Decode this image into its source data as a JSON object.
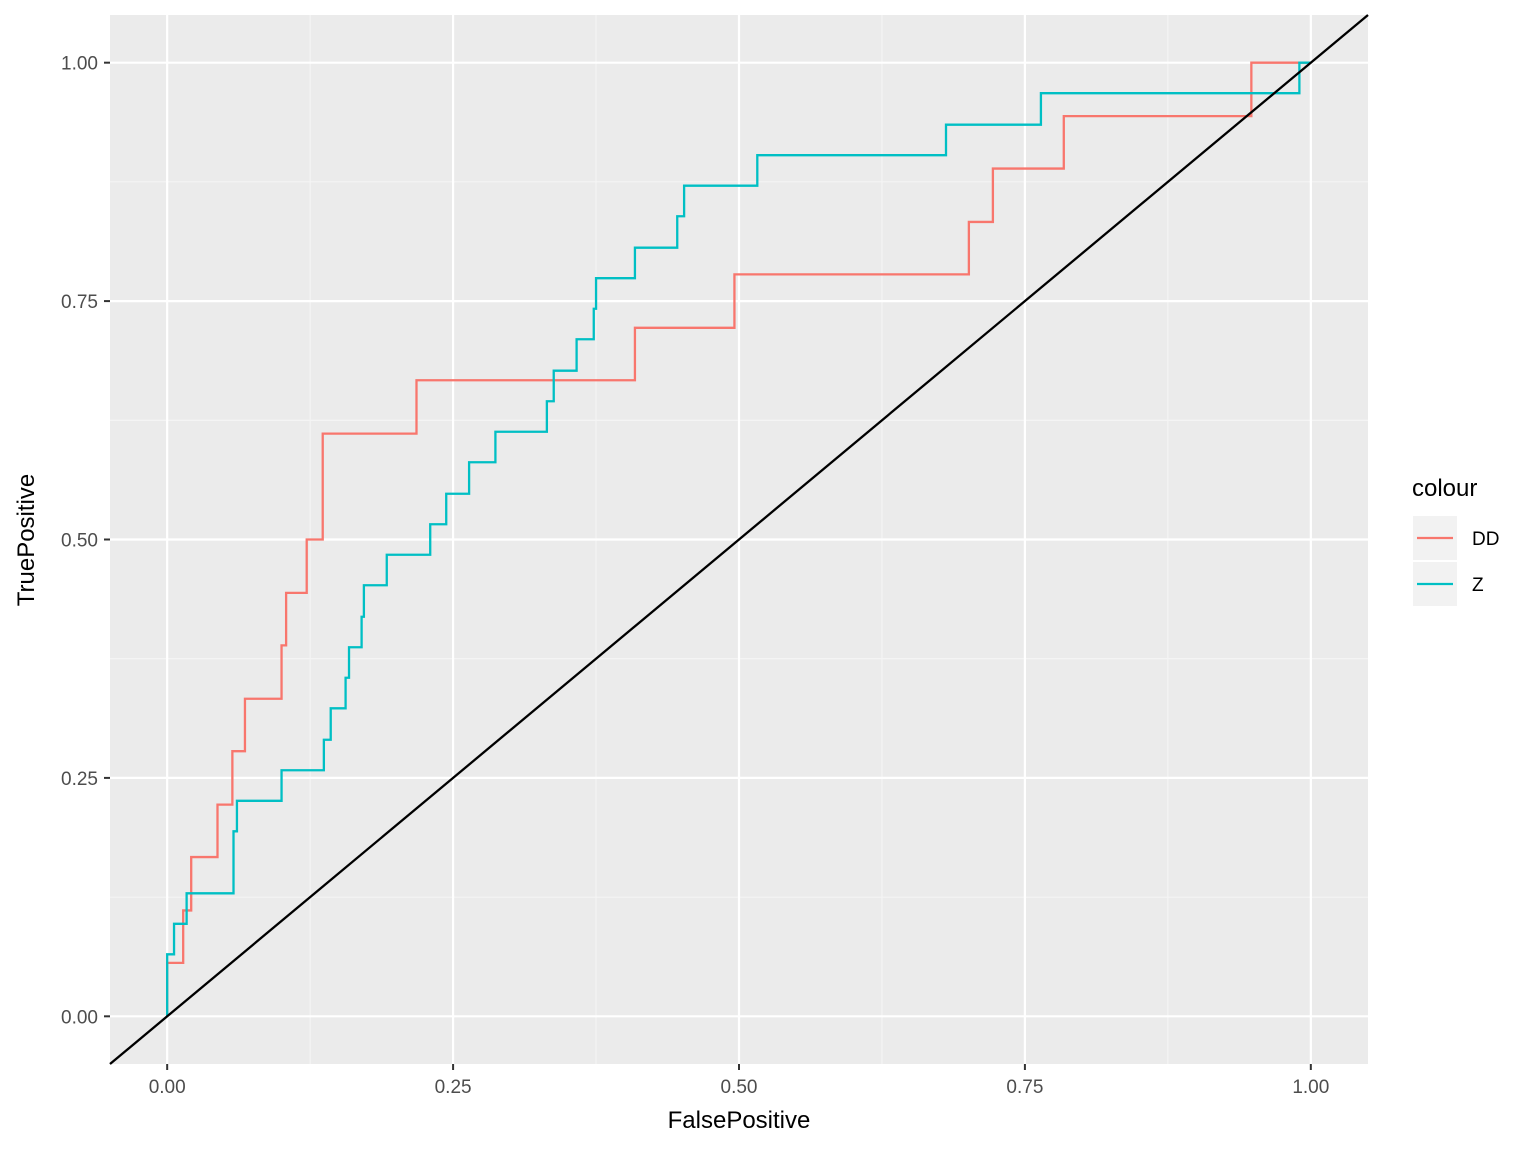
{
  "chart_data": {
    "type": "line",
    "xlabel": "FalsePositive",
    "ylabel": "TruePositive",
    "xlim": [
      -0.05,
      1.05
    ],
    "ylim": [
      -0.05,
      1.05
    ],
    "x_ticks": [
      "0.00",
      "0.25",
      "0.50",
      "0.75",
      "1.00"
    ],
    "y_ticks": [
      "0.00",
      "0.25",
      "0.50",
      "0.75",
      "1.00"
    ],
    "x_tick_values": [
      0,
      0.25,
      0.5,
      0.75,
      1.0
    ],
    "y_tick_values": [
      0,
      0.25,
      0.5,
      0.75,
      1.0
    ],
    "grid": true,
    "legend": {
      "title": "colour",
      "placement": "right"
    },
    "series": [
      {
        "name": "DD",
        "color": "#F8766D",
        "step": true,
        "x": [
          0.0,
          0.0,
          0.014,
          0.014,
          0.021,
          0.021,
          0.044,
          0.044,
          0.057,
          0.057,
          0.068,
          0.068,
          0.1,
          0.1,
          0.104,
          0.104,
          0.122,
          0.122,
          0.136,
          0.136,
          0.218,
          0.218,
          0.409,
          0.409,
          0.496,
          0.496,
          0.701,
          0.701,
          0.722,
          0.722,
          0.784,
          0.784,
          0.948,
          0.948,
          1.0
        ],
        "y": [
          0.0,
          0.056,
          0.056,
          0.111,
          0.111,
          0.167,
          0.167,
          0.222,
          0.222,
          0.278,
          0.278,
          0.333,
          0.333,
          0.389,
          0.389,
          0.444,
          0.444,
          0.5,
          0.5,
          0.611,
          0.611,
          0.667,
          0.667,
          0.722,
          0.722,
          0.778,
          0.778,
          0.833,
          0.833,
          0.889,
          0.889,
          0.944,
          0.944,
          1.0,
          1.0
        ]
      },
      {
        "name": "Z",
        "color": "#00BFC4",
        "step": true,
        "x": [
          0.0,
          0.0,
          0.006,
          0.006,
          0.017,
          0.017,
          0.058,
          0.058,
          0.061,
          0.061,
          0.1,
          0.1,
          0.137,
          0.137,
          0.143,
          0.143,
          0.156,
          0.156,
          0.159,
          0.159,
          0.17,
          0.17,
          0.172,
          0.172,
          0.192,
          0.192,
          0.23,
          0.23,
          0.244,
          0.244,
          0.264,
          0.264,
          0.287,
          0.287,
          0.332,
          0.332,
          0.338,
          0.338,
          0.358,
          0.358,
          0.373,
          0.373,
          0.375,
          0.375,
          0.409,
          0.409,
          0.446,
          0.446,
          0.452,
          0.452,
          0.516,
          0.516,
          0.681,
          0.681,
          0.764,
          0.764,
          0.99,
          0.99,
          1.0
        ],
        "y": [
          0.0,
          0.065,
          0.065,
          0.097,
          0.097,
          0.129,
          0.129,
          0.194,
          0.194,
          0.226,
          0.226,
          0.258,
          0.258,
          0.29,
          0.29,
          0.323,
          0.323,
          0.355,
          0.355,
          0.387,
          0.387,
          0.419,
          0.419,
          0.452,
          0.452,
          0.484,
          0.484,
          0.516,
          0.516,
          0.548,
          0.548,
          0.581,
          0.581,
          0.613,
          0.613,
          0.645,
          0.645,
          0.677,
          0.677,
          0.71,
          0.71,
          0.742,
          0.742,
          0.774,
          0.774,
          0.806,
          0.806,
          0.839,
          0.839,
          0.871,
          0.871,
          0.903,
          0.903,
          0.935,
          0.935,
          0.968,
          0.968,
          1.0,
          1.0
        ]
      }
    ],
    "reference_line": {
      "type": "diagonal",
      "color": "#000000",
      "from": [
        -0.05,
        -0.05
      ],
      "to": [
        1.05,
        1.05
      ]
    }
  },
  "colors": {
    "panel_bg": "#EBEBEB",
    "grid_major": "#FFFFFF",
    "grid_minor": "#F5F5F5",
    "legend_key_bg": "#F2F2F2"
  }
}
